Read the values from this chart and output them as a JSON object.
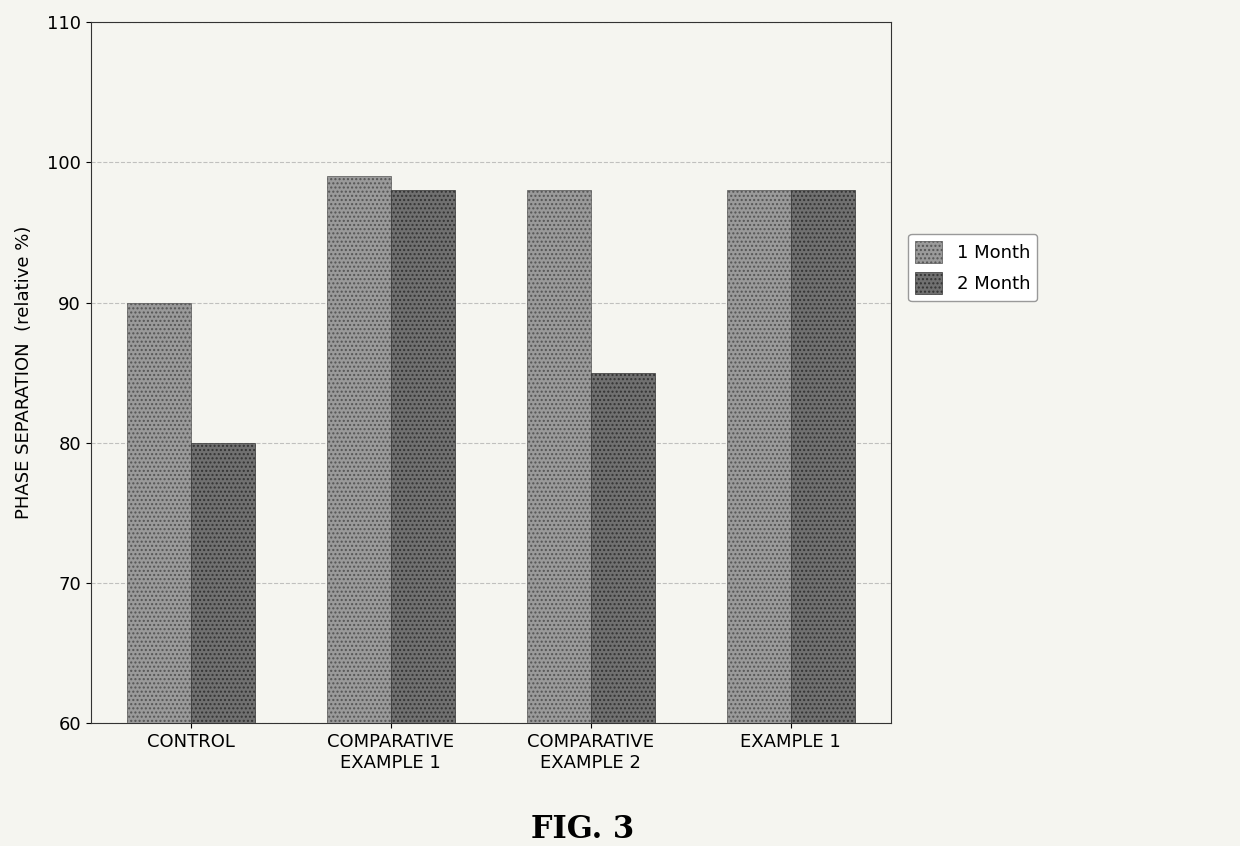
{
  "categories": [
    "CONTROL",
    "COMPARATIVE\nEXAMPLE 1",
    "COMPARATIVE\nEXAMPLE 2",
    "EXAMPLE 1"
  ],
  "month1_values": [
    90,
    99,
    98,
    98
  ],
  "month2_values": [
    80,
    98,
    85,
    98
  ],
  "bar_color_1": "#9A9A9A",
  "bar_color_2": "#707070",
  "ylabel": "PHASE SEPARATION  (relative %)",
  "ylim": [
    60,
    110
  ],
  "yticks": [
    60,
    70,
    80,
    90,
    100,
    110
  ],
  "legend_labels": [
    "1 Month",
    "2 Month"
  ],
  "figure_caption": "FIG. 3",
  "bar_width": 0.32,
  "grid_color": "#AAAAAA",
  "background_color": "#F5F5F0"
}
